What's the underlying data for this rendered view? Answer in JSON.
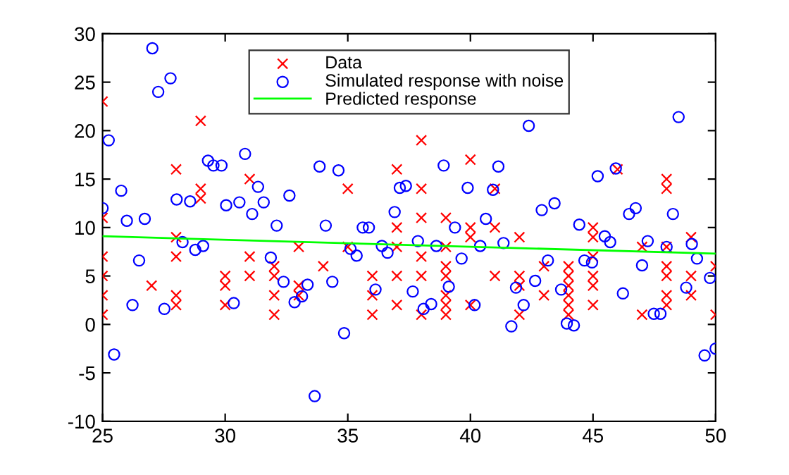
{
  "chart_data": {
    "type": "scatter",
    "xlim": [
      25,
      50
    ],
    "xticks": [
      25,
      30,
      35,
      40,
      45,
      50
    ],
    "ylim": [
      -10,
      30
    ],
    "yticks": [
      -10,
      -5,
      0,
      5,
      10,
      15,
      20,
      25,
      30
    ],
    "grid": false,
    "legend": "top",
    "series": [
      {
        "name": "Data",
        "marker": "cross",
        "color": "#ff0000",
        "x": [
          25,
          25,
          25,
          25,
          25,
          25,
          27,
          28,
          28,
          28,
          28,
          28,
          29,
          29,
          29,
          30,
          30,
          30,
          31,
          31,
          31,
          32,
          32,
          32,
          32,
          33,
          33,
          33,
          34,
          35,
          35,
          36,
          36,
          36,
          37,
          37,
          37,
          37,
          37,
          38,
          38,
          38,
          38,
          38,
          38,
          39,
          39,
          39,
          39,
          39,
          39,
          39,
          40,
          40,
          40,
          40,
          41,
          41,
          41,
          42,
          42,
          42,
          42,
          43,
          43,
          44,
          44,
          44,
          44,
          44,
          44,
          45,
          45,
          45,
          45,
          45,
          45,
          46,
          47,
          47,
          48,
          48,
          48,
          48,
          48,
          48,
          48,
          49,
          49,
          49,
          50,
          50
        ],
        "values": [
          23,
          11,
          7,
          5,
          3,
          1,
          4,
          16,
          9,
          7,
          3,
          2,
          21,
          14,
          13,
          5,
          4,
          2,
          15,
          7,
          5,
          6,
          5,
          3,
          1,
          8,
          4,
          3,
          6,
          14,
          8,
          5,
          3,
          1,
          16,
          10,
          8,
          5,
          2,
          19,
          14,
          11,
          7,
          5,
          1,
          11,
          8,
          6,
          5,
          3,
          2,
          1,
          17,
          10,
          9,
          2,
          14,
          10,
          5,
          9,
          5,
          4,
          1,
          6,
          3,
          6,
          5,
          4,
          3,
          2,
          1,
          10,
          9,
          7,
          5,
          4,
          2,
          16,
          8,
          1,
          15,
          14,
          8,
          6,
          5,
          3,
          2,
          9,
          5,
          3,
          6,
          1
        ]
      },
      {
        "name": "Simulated response with noise",
        "marker": "circle",
        "color": "#0000ff",
        "x": [
          27.03,
          27.77,
          27.27,
          25.25,
          29.3,
          29.52,
          29.85,
          30.81,
          25.76,
          28.02,
          28.57,
          25.0,
          30.04,
          30.58,
          31.34,
          31.57,
          31.1,
          32.62,
          25.99,
          26.72,
          32.1,
          28.26,
          28.78,
          29.1,
          26.49,
          31.86,
          32.38,
          26.22,
          27.52,
          30.35,
          32.83,
          25.47,
          33.13,
          33.36,
          33.85,
          34.62,
          37.12,
          37.37,
          38.91,
          41.14,
          39.89,
          40.92,
          36.91,
          34.1,
          35.61,
          35.86,
          40.63,
          39.37,
          41.35,
          37.86,
          36.39,
          36.62,
          38.61,
          40.4,
          35.11,
          35.36,
          39.64,
          41.86,
          34.37,
          36.13,
          37.65,
          39.12,
          38.09,
          38.4,
          40.17,
          34.85,
          33.65,
          41.67,
          42.38,
          48.49,
          45.93,
          45.19,
          42.91,
          43.43,
          46.47,
          46.74,
          48.26,
          44.44,
          45.48,
          45.7,
          47.23,
          48.0,
          49.03,
          49.24,
          43.16,
          44.65,
          44.96,
          47.0,
          49.77,
          42.64,
          43.7,
          46.22,
          48.8,
          42.17,
          43.93,
          44.22,
          47.48,
          47.75,
          50.0,
          49.55
        ],
        "values": [
          28.5,
          25.4,
          24.0,
          19.0,
          16.9,
          16.4,
          16.4,
          17.6,
          13.8,
          12.9,
          12.7,
          12.0,
          12.3,
          12.6,
          14.2,
          12.6,
          11.4,
          13.3,
          10.7,
          10.9,
          10.2,
          8.5,
          7.7,
          8.1,
          6.6,
          6.9,
          4.4,
          2.0,
          1.6,
          2.2,
          2.3,
          -3.1,
          2.9,
          4.1,
          16.3,
          15.9,
          14.1,
          14.3,
          16.4,
          16.3,
          14.1,
          13.9,
          11.6,
          10.2,
          10.0,
          10.0,
          10.9,
          10.0,
          8.4,
          8.6,
          8.1,
          7.4,
          8.1,
          8.1,
          7.8,
          7.1,
          6.8,
          3.8,
          4.4,
          3.6,
          3.4,
          3.9,
          1.6,
          2.1,
          2.0,
          -0.9,
          -7.4,
          -0.2,
          20.5,
          21.4,
          16.1,
          15.3,
          11.8,
          12.5,
          11.4,
          12.0,
          11.4,
          10.3,
          9.1,
          8.5,
          8.6,
          8.0,
          8.3,
          6.8,
          6.6,
          6.6,
          6.4,
          6.1,
          4.8,
          4.5,
          3.6,
          3.2,
          3.8,
          2.0,
          0.1,
          -0.1,
          1.1,
          1.1,
          -2.5,
          -3.2
        ]
      },
      {
        "name": "Predicted response",
        "type": "line",
        "marker": "none",
        "line_style": "solid",
        "color": "#00ff00",
        "x": [
          25,
          50
        ],
        "values": [
          9.1,
          7.3
        ]
      }
    ]
  }
}
